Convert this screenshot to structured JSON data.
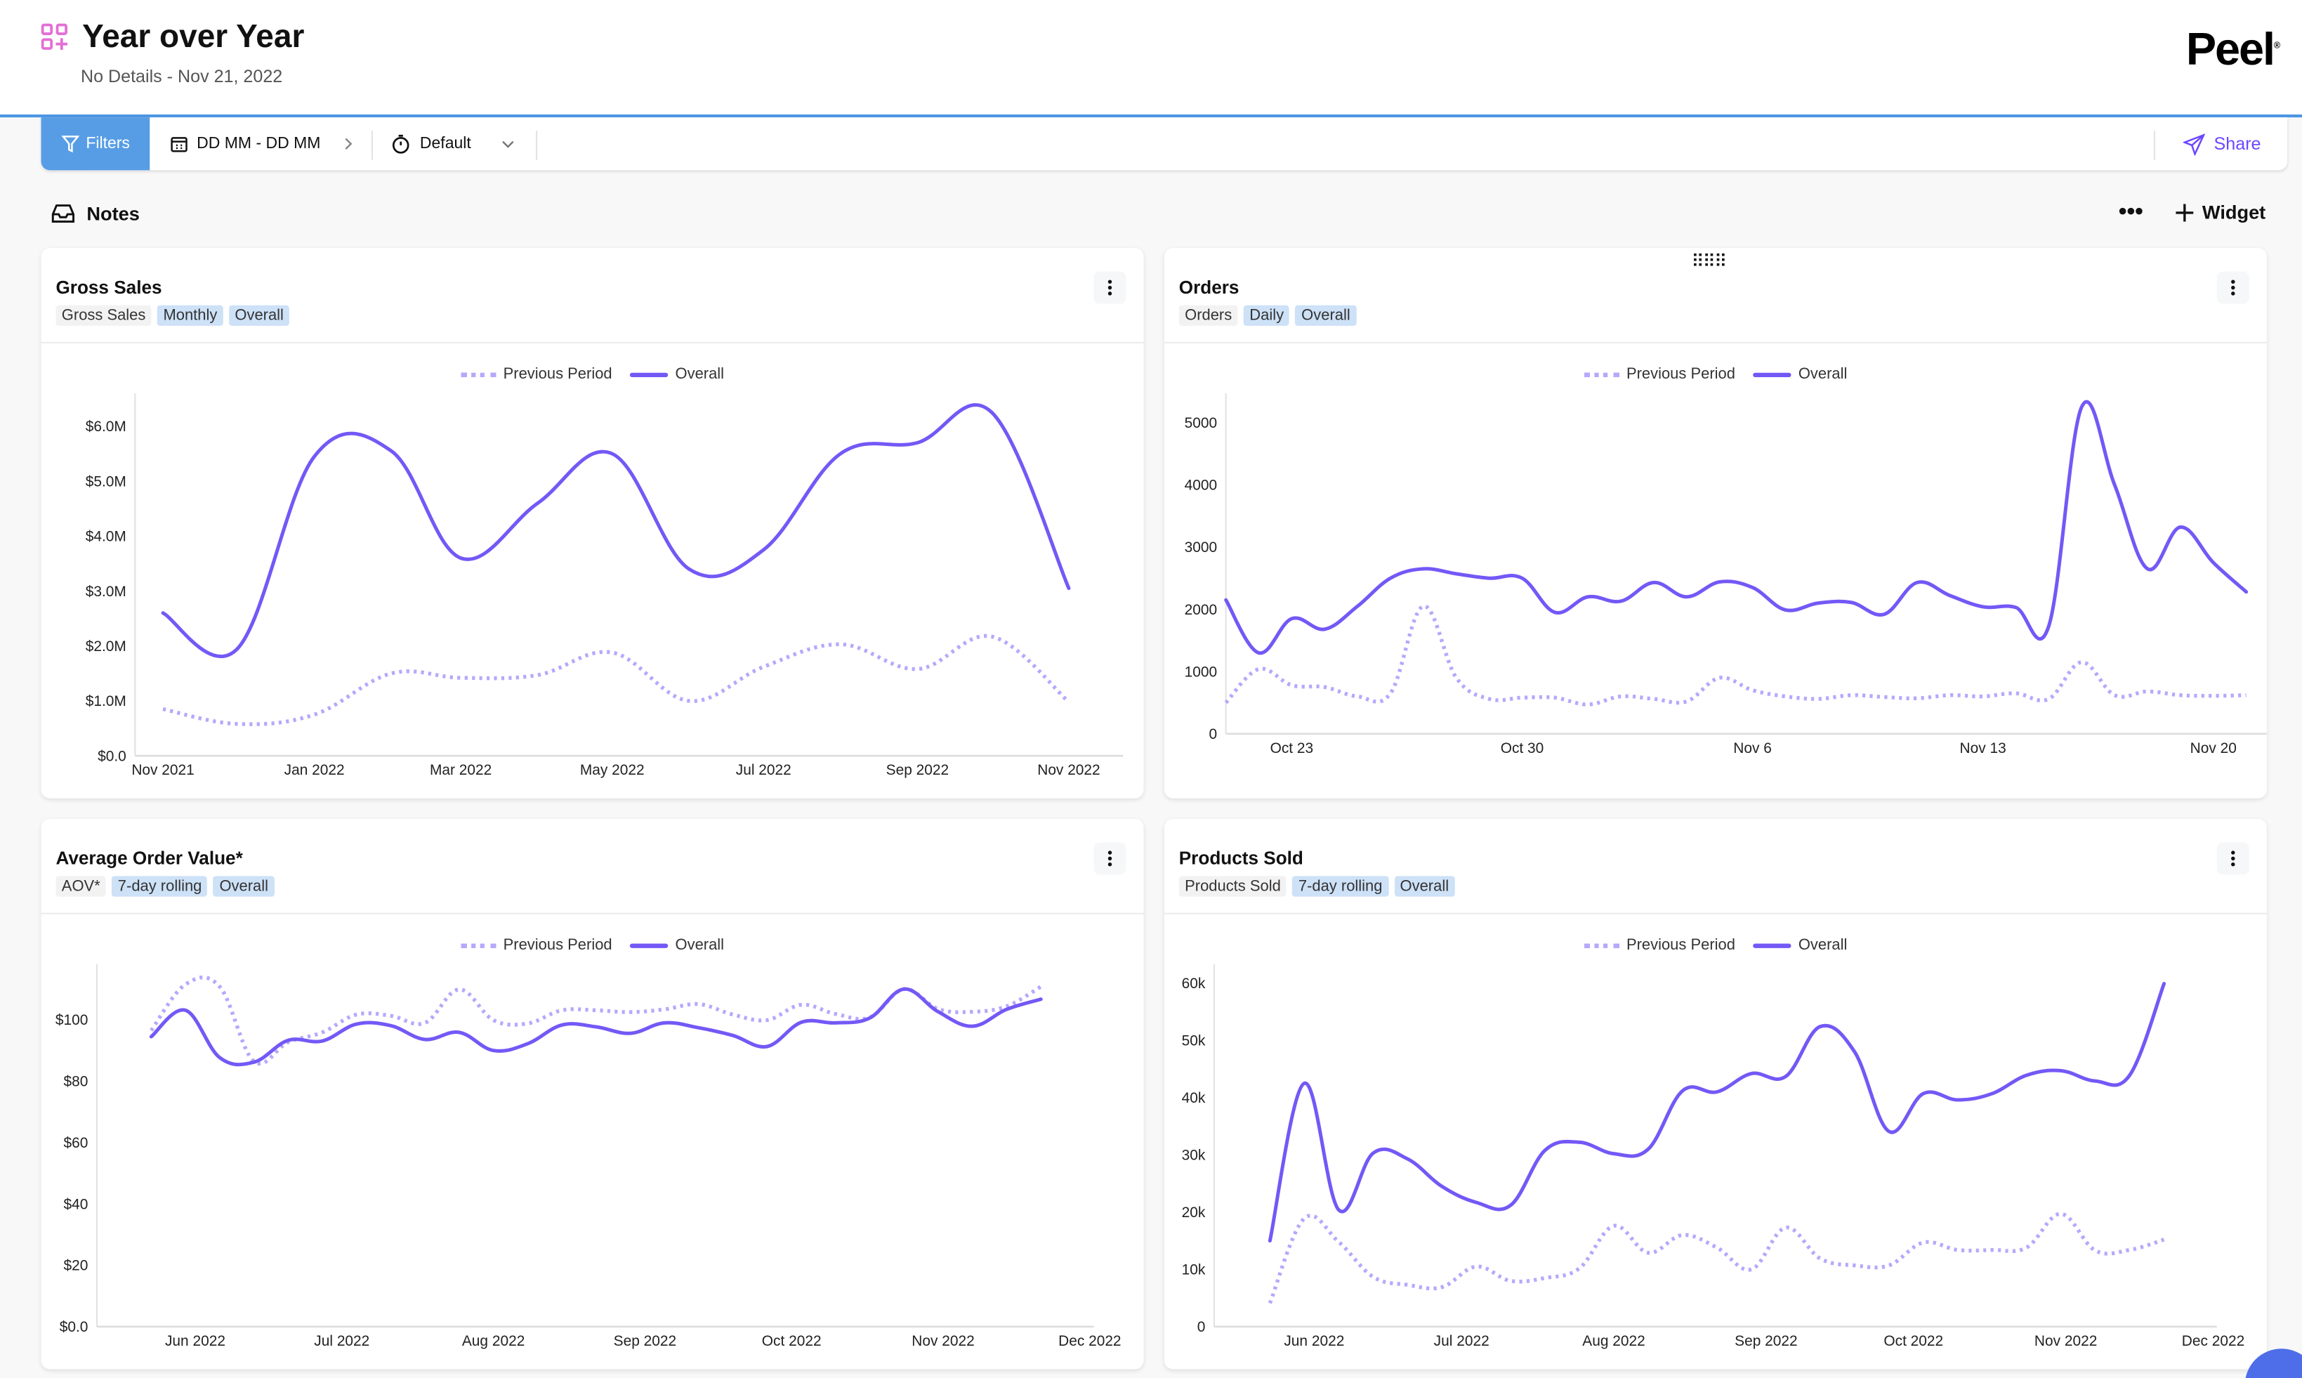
{
  "header": {
    "title": "Year over Year",
    "subtitle": "No Details - Nov 21, 2022",
    "logo": "Peel"
  },
  "toolbar": {
    "filters_label": "Filters",
    "date_range": "DD MM - DD MM",
    "preset": "Default",
    "share_label": "Share"
  },
  "notes": {
    "label": "Notes",
    "more_label": "•••",
    "widget_label": "Widget"
  },
  "colors": {
    "overall": "#7458f6",
    "previous": "#b6a8fb",
    "accent": "#579de5",
    "share": "#6c47ff"
  },
  "legend": {
    "previous": "Previous Period",
    "overall": "Overall"
  },
  "cards": [
    {
      "title": "Gross Sales",
      "tags": [
        "Gross Sales",
        "Monthly",
        "Overall"
      ]
    },
    {
      "title": "Orders",
      "tags": [
        "Orders",
        "Daily",
        "Overall"
      ]
    },
    {
      "title": "Average Order Value*",
      "tags": [
        "AOV*",
        "7-day rolling",
        "Overall"
      ]
    },
    {
      "title": "Products Sold",
      "tags": [
        "Products Sold",
        "7-day rolling",
        "Overall"
      ]
    }
  ],
  "chart_data": [
    {
      "type": "line",
      "title": "Gross Sales",
      "x": [
        "2021-11-01",
        "2021-12-01",
        "2022-01-01",
        "2022-02-01",
        "2022-03-01",
        "2022-04-01",
        "2022-05-01",
        "2022-06-01",
        "2022-07-01",
        "2022-08-01",
        "2022-09-01",
        "2022-10-01",
        "2022-11-01"
      ],
      "series": [
        {
          "name": "Previous Period",
          "style": "dotted",
          "values": [
            850000,
            580000,
            750000,
            1500000,
            1420000,
            1470000,
            1880000,
            1000000,
            1620000,
            2030000,
            1580000,
            2170000,
            980000
          ]
        },
        {
          "name": "Overall",
          "style": "solid",
          "values": [
            2600000,
            1950000,
            5450000,
            5550000,
            3600000,
            4600000,
            5500000,
            3400000,
            3750000,
            5500000,
            5700000,
            6250000,
            3050000
          ]
        }
      ],
      "ylim": [
        0,
        6600000
      ],
      "yticks": [
        {
          "v": 0,
          "label": "$0.0"
        },
        {
          "v": 1000000,
          "label": "$1.0M"
        },
        {
          "v": 2000000,
          "label": "$2.0M"
        },
        {
          "v": 3000000,
          "label": "$3.0M"
        },
        {
          "v": 4000000,
          "label": "$4.0M"
        },
        {
          "v": 5000000,
          "label": "$5.0M"
        },
        {
          "v": 6000000,
          "label": "$6.0M"
        }
      ],
      "xticks": [
        {
          "v": "2021-11-01",
          "label": "Nov 2021"
        },
        {
          "v": "2022-01-01",
          "label": "Jan 2022"
        },
        {
          "v": "2022-03-01",
          "label": "Mar 2022"
        },
        {
          "v": "2022-05-01",
          "label": "May 2022"
        },
        {
          "v": "2022-07-01",
          "label": "Jul 2022"
        },
        {
          "v": "2022-09-01",
          "label": "Sep 2022"
        },
        {
          "v": "2022-11-01",
          "label": "Nov 2022"
        }
      ],
      "legend": "top-center",
      "grid": false
    },
    {
      "type": "line",
      "title": "Orders",
      "x": [
        "2022-10-21",
        "2022-10-22",
        "2022-10-23",
        "2022-10-24",
        "2022-10-25",
        "2022-10-26",
        "2022-10-27",
        "2022-10-28",
        "2022-10-29",
        "2022-10-30",
        "2022-10-31",
        "2022-11-01",
        "2022-11-02",
        "2022-11-03",
        "2022-11-04",
        "2022-11-05",
        "2022-11-06",
        "2022-11-07",
        "2022-11-08",
        "2022-11-09",
        "2022-11-10",
        "2022-11-11",
        "2022-11-12",
        "2022-11-13",
        "2022-11-14",
        "2022-11-15",
        "2022-11-16",
        "2022-11-17",
        "2022-11-18",
        "2022-11-19",
        "2022-11-20",
        "2022-11-21"
      ],
      "series": [
        {
          "name": "Previous Period",
          "style": "dotted",
          "values": [
            500,
            1040,
            780,
            750,
            600,
            650,
            2050,
            900,
            560,
            580,
            580,
            470,
            600,
            560,
            520,
            900,
            700,
            600,
            560,
            620,
            590,
            570,
            620,
            600,
            650,
            560,
            1150,
            620,
            680,
            620,
            610,
            620
          ]
        },
        {
          "name": "Overall",
          "style": "solid",
          "values": [
            2150,
            1300,
            1850,
            1680,
            2050,
            2500,
            2650,
            2570,
            2500,
            2500,
            1950,
            2200,
            2130,
            2430,
            2200,
            2440,
            2350,
            1990,
            2100,
            2110,
            1920,
            2430,
            2220,
            2040,
            2030,
            1730,
            5250,
            4000,
            2650,
            3320,
            2750,
            2280
          ]
        }
      ],
      "ylim": [
        0,
        5470
      ],
      "yticks": [
        {
          "v": 0,
          "label": "0"
        },
        {
          "v": 1000,
          "label": "1000"
        },
        {
          "v": 2000,
          "label": "2000"
        },
        {
          "v": 3000,
          "label": "3000"
        },
        {
          "v": 4000,
          "label": "4000"
        },
        {
          "v": 5000,
          "label": "5000"
        }
      ],
      "xticks": [
        {
          "v": "2022-10-23",
          "label": "Oct 23"
        },
        {
          "v": "2022-10-30",
          "label": "Oct 30"
        },
        {
          "v": "2022-11-06",
          "label": "Nov 6"
        },
        {
          "v": "2022-11-13",
          "label": "Nov 13"
        },
        {
          "v": "2022-11-20",
          "label": "Nov 20"
        }
      ],
      "legend": "top-center",
      "grid": false
    },
    {
      "type": "line",
      "title": "Average Order Value*",
      "x": [
        "2022-05-23",
        "2022-05-30",
        "2022-06-06",
        "2022-06-13",
        "2022-06-20",
        "2022-06-27",
        "2022-07-04",
        "2022-07-11",
        "2022-07-18",
        "2022-07-25",
        "2022-08-01",
        "2022-08-08",
        "2022-08-15",
        "2022-08-22",
        "2022-08-29",
        "2022-09-05",
        "2022-09-12",
        "2022-09-19",
        "2022-09-26",
        "2022-10-03",
        "2022-10-10",
        "2022-10-17",
        "2022-10-24",
        "2022-10-31",
        "2022-11-07",
        "2022-11-14",
        "2022-11-21"
      ],
      "series": [
        {
          "name": "Previous Period",
          "style": "dotted",
          "values": [
            96.4,
            111.4,
            110.7,
            86.4,
            92.6,
            95.8,
            101.6,
            101.2,
            98.9,
            109.8,
            99.8,
            98.7,
            103,
            103,
            102.4,
            103.3,
            105,
            101.6,
            99.8,
            104.8,
            101.8,
            100.7,
            109.9,
            103.4,
            102.5,
            104.3,
            110.7
          ]
        },
        {
          "name": "Overall",
          "style": "solid",
          "values": [
            94.4,
            103,
            87.6,
            86.1,
            93.2,
            93,
            98.5,
            98,
            93.5,
            95.8,
            89.9,
            92.1,
            98.2,
            97.6,
            95.5,
            98.9,
            97.3,
            94.8,
            91.2,
            99.1,
            98.9,
            100.5,
            109.9,
            102.5,
            97.8,
            103.3,
            106.6
          ]
        }
      ],
      "ylim": [
        0,
        118
      ],
      "yticks": [
        {
          "v": 0,
          "label": "$0.0"
        },
        {
          "v": 20,
          "label": "$20"
        },
        {
          "v": 40,
          "label": "$40"
        },
        {
          "v": 60,
          "label": "$60"
        },
        {
          "v": 80,
          "label": "$80"
        },
        {
          "v": 100,
          "label": "$100"
        }
      ],
      "xticks": [
        {
          "v": "2022-06-01",
          "label": "Jun 2022"
        },
        {
          "v": "2022-07-01",
          "label": "Jul 2022"
        },
        {
          "v": "2022-08-01",
          "label": "Aug 2022"
        },
        {
          "v": "2022-09-01",
          "label": "Sep 2022"
        },
        {
          "v": "2022-10-01",
          "label": "Oct 2022"
        },
        {
          "v": "2022-11-01",
          "label": "Nov 2022"
        },
        {
          "v": "2022-12-01",
          "label": "Dec 2022"
        }
      ],
      "legend": "top-center",
      "grid": false
    },
    {
      "type": "line",
      "title": "Products Sold",
      "x": [
        "2022-05-23",
        "2022-05-30",
        "2022-06-06",
        "2022-06-13",
        "2022-06-20",
        "2022-06-27",
        "2022-07-04",
        "2022-07-11",
        "2022-07-18",
        "2022-07-25",
        "2022-08-01",
        "2022-08-08",
        "2022-08-15",
        "2022-08-22",
        "2022-08-29",
        "2022-09-05",
        "2022-09-12",
        "2022-09-19",
        "2022-09-26",
        "2022-10-03",
        "2022-10-10",
        "2022-10-17",
        "2022-10-24",
        "2022-10-31",
        "2022-11-07",
        "2022-11-14",
        "2022-11-21"
      ],
      "series": [
        {
          "name": "Previous Period",
          "style": "dotted",
          "values": [
            4100,
            18900,
            14800,
            8700,
            7300,
            6900,
            10500,
            8000,
            8500,
            10200,
            17600,
            12900,
            16000,
            13800,
            10000,
            17300,
            11900,
            10700,
            10700,
            14700,
            13400,
            13400,
            13800,
            19700,
            13300,
            13400,
            15200
          ]
        },
        {
          "name": "Overall",
          "style": "solid",
          "values": [
            15000,
            42500,
            20400,
            30300,
            29300,
            24500,
            21700,
            21200,
            30800,
            32200,
            30200,
            31000,
            41200,
            41000,
            44200,
            43700,
            52400,
            48000,
            34100,
            40700,
            39600,
            40700,
            43900,
            44700,
            42900,
            43900,
            59900
          ]
        }
      ],
      "ylim": [
        0,
        63300
      ],
      "yticks": [
        {
          "v": 0,
          "label": "0"
        },
        {
          "v": 10000,
          "label": "10k"
        },
        {
          "v": 20000,
          "label": "20k"
        },
        {
          "v": 30000,
          "label": "30k"
        },
        {
          "v": 40000,
          "label": "40k"
        },
        {
          "v": 50000,
          "label": "50k"
        },
        {
          "v": 60000,
          "label": "60k"
        }
      ],
      "xticks": [
        {
          "v": "2022-06-01",
          "label": "Jun 2022"
        },
        {
          "v": "2022-07-01",
          "label": "Jul 2022"
        },
        {
          "v": "2022-08-01",
          "label": "Aug 2022"
        },
        {
          "v": "2022-09-01",
          "label": "Sep 2022"
        },
        {
          "v": "2022-10-01",
          "label": "Oct 2022"
        },
        {
          "v": "2022-11-01",
          "label": "Nov 2022"
        },
        {
          "v": "2022-12-01",
          "label": "Dec 2022"
        }
      ],
      "legend": "top-center",
      "grid": false
    }
  ]
}
